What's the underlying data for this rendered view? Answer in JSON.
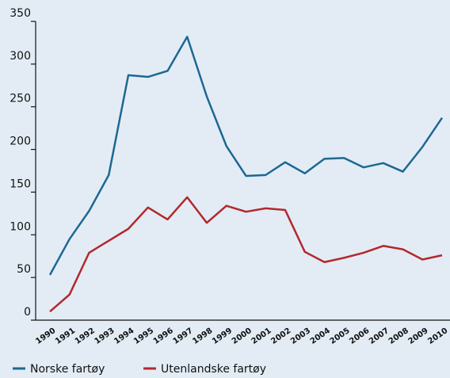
{
  "chart_data": {
    "type": "line",
    "categories": [
      "1990",
      "1991",
      "1992",
      "1993",
      "1994",
      "1995",
      "1996",
      "1997",
      "1998",
      "1999",
      "2000",
      "2001",
      "2002",
      "2003",
      "2004",
      "2005",
      "2006",
      "2007",
      "2008",
      "2009",
      "2010"
    ],
    "series": [
      {
        "name": "Norske fartøy",
        "color": "#1d6892",
        "values": [
          53,
          95,
          128,
          170,
          287,
          285,
          292,
          332,
          262,
          204,
          169,
          170,
          185,
          172,
          189,
          190,
          179,
          184,
          174,
          203,
          237
        ]
      },
      {
        "name": "Utenlandske fartøy",
        "color": "#b3282d",
        "values": [
          10,
          30,
          79,
          93,
          107,
          132,
          118,
          144,
          114,
          134,
          127,
          131,
          129,
          80,
          68,
          73,
          79,
          87,
          83,
          71,
          76
        ]
      }
    ],
    "ylim": [
      0,
      350
    ],
    "yticks": [
      0,
      50,
      100,
      150,
      200,
      250,
      300,
      350
    ]
  }
}
